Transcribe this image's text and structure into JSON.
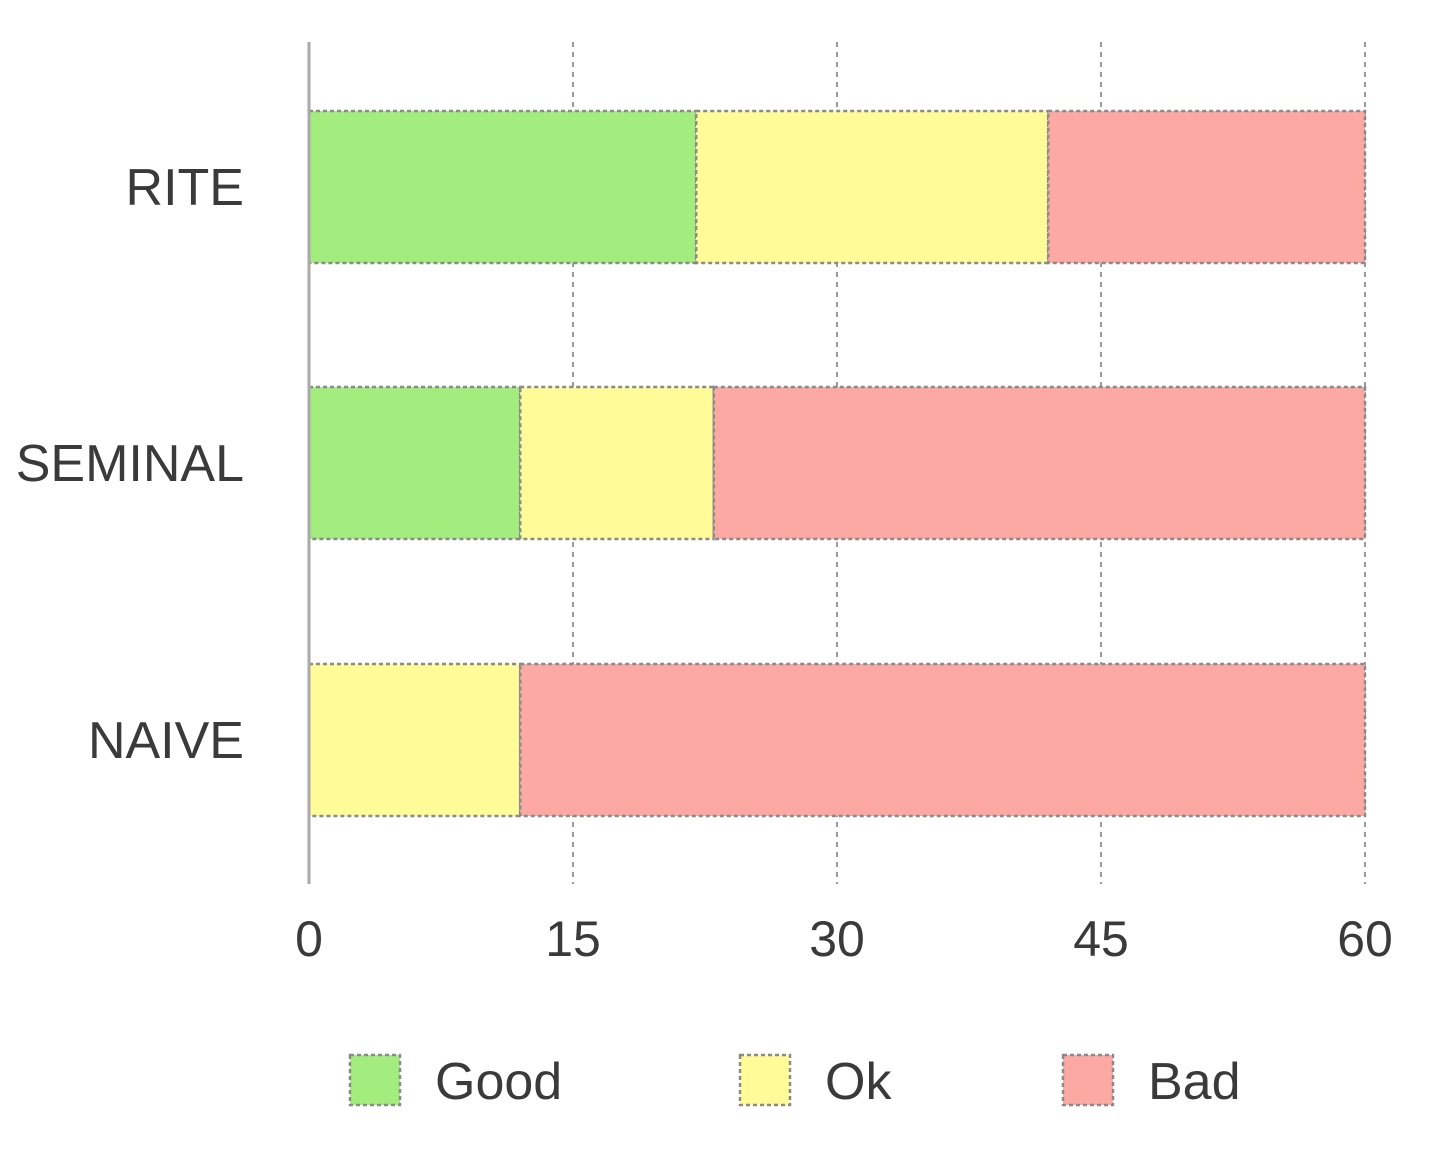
{
  "chart_data": {
    "type": "bar",
    "orientation": "horizontal",
    "stacked": true,
    "categories": [
      "RITE",
      "SEMINAL",
      "NAIVE"
    ],
    "series": [
      {
        "name": "Good",
        "color": "#a2ed7d",
        "values": [
          22,
          12,
          0
        ]
      },
      {
        "name": "Ok",
        "color": "#fffb99",
        "values": [
          20,
          11,
          12
        ]
      },
      {
        "name": "Bad",
        "color": "#fca8a3",
        "values": [
          18,
          37,
          48
        ]
      }
    ],
    "xlim": [
      0,
      60
    ],
    "xticks": [
      "0",
      "15",
      "30",
      "45",
      "60"
    ],
    "grid": "vertical-dashed",
    "legend": "bottom",
    "title": "",
    "xlabel": "",
    "ylabel": ""
  }
}
